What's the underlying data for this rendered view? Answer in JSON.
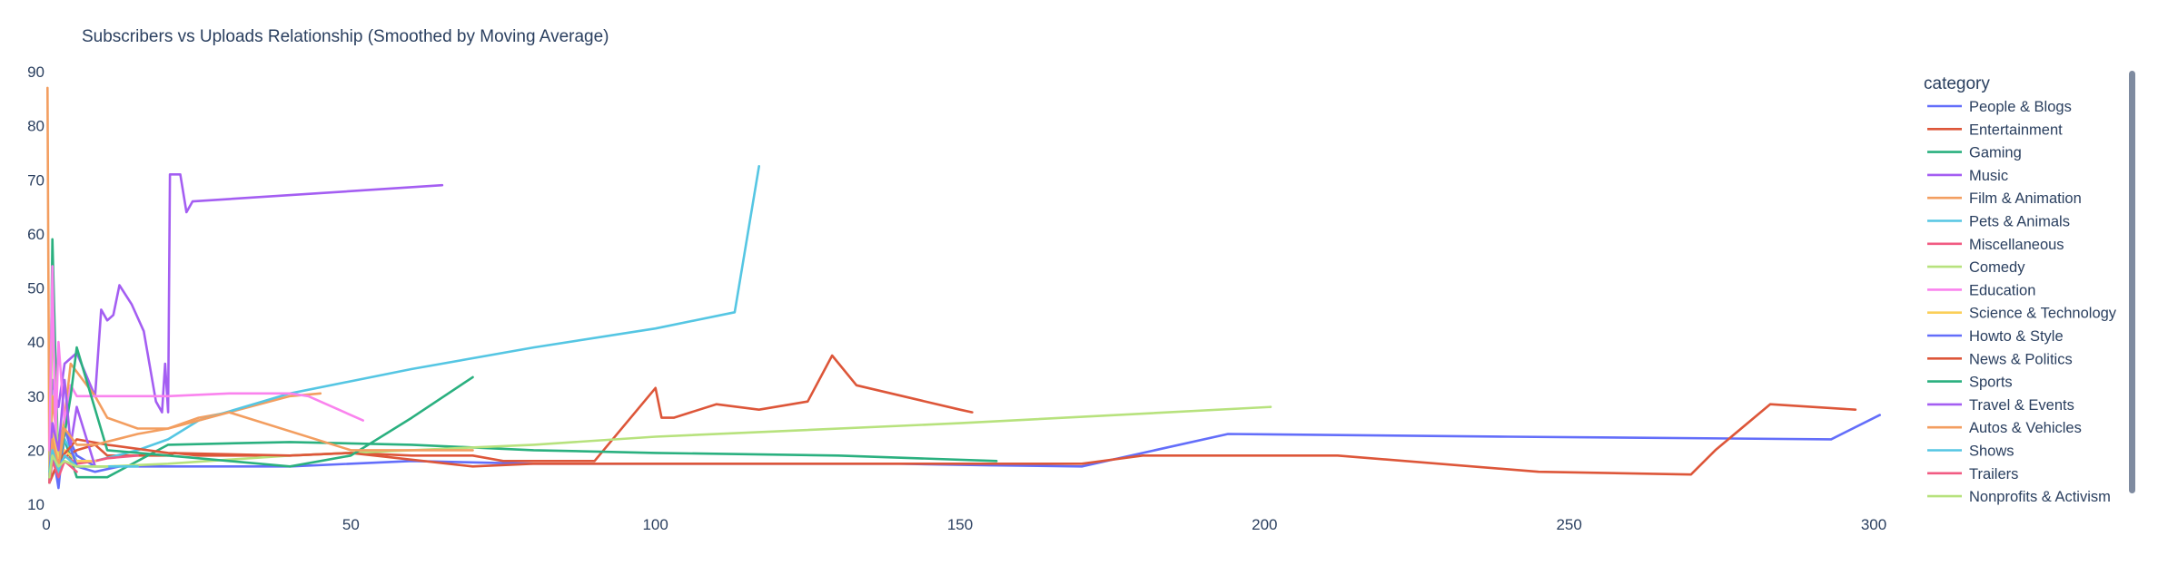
{
  "chart_data": {
    "type": "line",
    "title": "Subscribers vs Uploads Relationship (Smoothed by Moving Average)",
    "xlabel": "",
    "ylabel": "",
    "xlim": [
      0,
      300
    ],
    "ylim": [
      10,
      90
    ],
    "x_ticks": [
      "0",
      "50",
      "100",
      "150",
      "200",
      "250",
      "300"
    ],
    "y_ticks": [
      "10",
      "20",
      "30",
      "40",
      "50",
      "60",
      "70",
      "80",
      "90"
    ],
    "grid": false,
    "legend": {
      "title": "category",
      "placement": "right"
    },
    "series": [
      {
        "name": "People & Blogs",
        "color": "#636efa",
        "x": [
          0.5,
          1,
          2,
          3,
          5,
          8,
          15,
          25,
          40,
          60,
          80,
          100,
          120,
          140,
          155,
          170,
          194,
          240,
          293,
          301
        ],
        "y": [
          14,
          22,
          18,
          24,
          19,
          17,
          17,
          17,
          17,
          18,
          17.5,
          17.5,
          17.5,
          17.5,
          17.2,
          17,
          23,
          22.5,
          22,
          26.5
        ]
      },
      {
        "name": "Entertainment",
        "color": "#dd5639",
        "x": [
          0.5,
          2,
          5,
          8,
          10,
          15,
          20,
          21,
          25,
          35,
          40,
          50,
          60,
          70,
          75,
          90,
          100,
          101,
          103,
          110,
          117,
          125,
          129,
          133,
          150,
          152
        ],
        "y": [
          14,
          18,
          20,
          21,
          19,
          19,
          19,
          19.5,
          19,
          19,
          19,
          19.5,
          19,
          19,
          18,
          18,
          31.5,
          26,
          26,
          28.5,
          27.5,
          29,
          37.5,
          32,
          27.5,
          27
        ]
      },
      {
        "name": "Gaming",
        "color": "#2ab07f",
        "x": [
          0.5,
          1,
          2,
          3,
          5,
          10,
          20,
          40,
          60,
          80,
          100,
          130,
          156
        ],
        "y": [
          14,
          59,
          15,
          22,
          15,
          15,
          21,
          21.5,
          21,
          20,
          19.5,
          19,
          18
        ]
      },
      {
        "name": "Music",
        "color": "#a45ef2",
        "x": [
          0.5,
          1,
          2,
          3,
          5,
          8,
          9,
          10,
          11,
          12,
          14,
          16,
          18,
          19,
          19.5,
          20,
          20.3,
          20.6,
          22,
          23,
          24,
          65
        ],
        "y": [
          15,
          33,
          28,
          36,
          38,
          30,
          46,
          44,
          45,
          50.5,
          47,
          42,
          29,
          27,
          36,
          27,
          71,
          71,
          71,
          64,
          66,
          69
        ]
      },
      {
        "name": "Film & Animation",
        "color": "#f39e60",
        "x": [
          0.2,
          0.5,
          1,
          2,
          3,
          4,
          6,
          8,
          10,
          15,
          20,
          25,
          30,
          40,
          45
        ],
        "y": [
          87,
          14,
          30,
          19,
          26,
          36,
          33,
          30,
          26,
          24,
          24,
          26,
          27,
          30,
          30.5
        ]
      },
      {
        "name": "Pets & Animals",
        "color": "#55c6e3",
        "x": [
          0.5,
          1,
          2,
          3,
          5,
          8,
          15,
          20,
          25,
          40,
          60,
          80,
          100,
          113,
          117
        ],
        "y": [
          14,
          24,
          15,
          22,
          18,
          18,
          20,
          22,
          25.5,
          30.5,
          35,
          39,
          42.5,
          45.5,
          72.5
        ]
      },
      {
        "name": "Miscellaneous",
        "color": "#f15b82",
        "x": [
          0.5,
          1,
          2,
          3,
          5,
          8,
          10,
          15
        ],
        "y": [
          14,
          22,
          17,
          19,
          17.5,
          18,
          18.5,
          19
        ]
      },
      {
        "name": "Comedy",
        "color": "#b7e27d",
        "x": [
          0.5,
          1,
          2,
          3,
          5,
          10,
          20,
          40,
          60,
          80,
          100,
          150,
          201
        ],
        "y": [
          15,
          45,
          16,
          18,
          17,
          17,
          17.5,
          19,
          20,
          21,
          22.5,
          25,
          28
        ]
      },
      {
        "name": "Education",
        "color": "#fa83ee",
        "x": [
          0.5,
          1,
          1.5,
          2,
          3,
          4,
          5,
          6,
          10,
          20,
          30,
          40,
          43,
          52
        ],
        "y": [
          20,
          54,
          22,
          40,
          25,
          32,
          30,
          30,
          30,
          30,
          30.5,
          30.5,
          30,
          25.5
        ]
      },
      {
        "name": "Science & Technology",
        "color": "#fbcf58",
        "x": [
          0.5,
          1,
          2,
          3,
          5,
          8
        ],
        "y": [
          16,
          24,
          18,
          20,
          18,
          18
        ]
      },
      {
        "name": "Howto & Style",
        "color": "#636efa",
        "x": [
          0.5,
          1,
          2,
          3,
          5,
          8,
          12
        ],
        "y": [
          15,
          20,
          13,
          24,
          17,
          16,
          17
        ]
      },
      {
        "name": "News & Politics",
        "color": "#dd5639",
        "x": [
          0.5,
          2,
          5,
          10,
          20,
          40,
          50,
          70,
          80,
          120,
          170,
          180,
          200,
          212,
          245,
          270,
          274,
          283,
          297
        ],
        "y": [
          14,
          18,
          22,
          21,
          19.5,
          19,
          19.5,
          17,
          17.5,
          17.5,
          17.5,
          19,
          19,
          19,
          16,
          15.5,
          20,
          28.5,
          27.5
        ]
      },
      {
        "name": "Sports",
        "color": "#2ab07f",
        "x": [
          0.5,
          1,
          2,
          3,
          4,
          5,
          10,
          20,
          30,
          40,
          50,
          60,
          70
        ],
        "y": [
          14,
          20,
          17,
          23,
          30,
          39,
          20,
          19,
          18,
          17,
          19,
          26,
          33.5
        ]
      },
      {
        "name": "Travel & Events",
        "color": "#a45ef2",
        "x": [
          0.5,
          1,
          2,
          3,
          4,
          5,
          8
        ],
        "y": [
          15,
          25,
          20,
          33,
          21,
          28,
          17
        ]
      },
      {
        "name": "Autos & Vehicles",
        "color": "#f39e60",
        "x": [
          0.5,
          1,
          2,
          3,
          5,
          8,
          15,
          20,
          25,
          30,
          50,
          70
        ],
        "y": [
          14,
          22,
          17,
          24,
          21,
          21,
          23,
          24,
          25.5,
          27,
          20,
          20
        ]
      },
      {
        "name": "Shows",
        "color": "#55c6e3",
        "x": [
          0.5,
          1,
          2,
          3,
          5,
          8,
          15
        ],
        "y": [
          16,
          20,
          16,
          19,
          17,
          17,
          17
        ]
      },
      {
        "name": "Trailers",
        "color": "#f15b82",
        "x": [
          0.5,
          1,
          2,
          3,
          5
        ],
        "y": [
          14,
          18,
          15,
          18,
          16
        ]
      },
      {
        "name": "Nonprofits & Activism",
        "color": "#b7e27d",
        "x": [
          0.5,
          1,
          2,
          3,
          5,
          10
        ],
        "y": [
          15,
          19,
          17,
          18,
          17,
          17
        ]
      }
    ]
  }
}
